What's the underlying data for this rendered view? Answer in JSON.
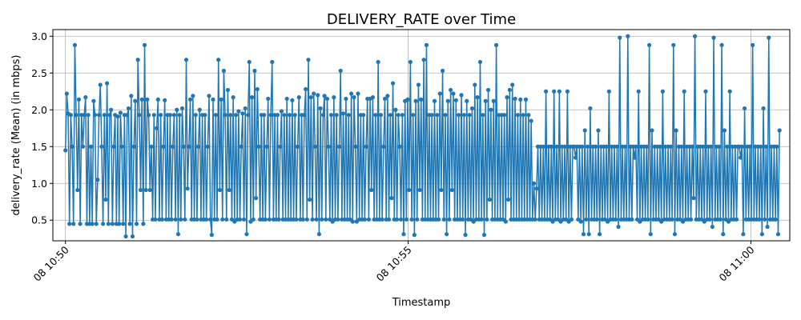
{
  "chart_data": {
    "type": "line",
    "title": "DELIVERY_RATE over Time",
    "xlabel": "Timestamp",
    "ylabel": "delivery_rate (Mean) (in mbps)",
    "x_range": [
      "08 10:49:49",
      "08 11:00:34"
    ],
    "ylim": [
      0.22,
      3.09
    ],
    "y_ticks": [
      0.5,
      1.0,
      1.5,
      2.0,
      2.5,
      3.0
    ],
    "y_tick_labels": [
      "0.5",
      "1.0",
      "1.5",
      "2.0",
      "2.5",
      "3.0"
    ],
    "x_ticks": [
      {
        "value": "08 10:50:00",
        "label": "08 10:50"
      },
      {
        "value": "08 10:55:00",
        "label": "08 10:55"
      },
      {
        "value": "08 11:00:00",
        "label": "08 11:00"
      }
    ],
    "grid": true,
    "color": "#1f77b4",
    "series": [
      {
        "x_start": "08 10:50:00",
        "x_end": "08 11:00:25",
        "values": [
          1.45,
          2.22,
          1.95,
          0.45,
          1.93,
          1.5,
          0.45,
          2.88,
          1.93,
          0.91,
          2.14,
          0.45,
          1.93,
          1.5,
          1.93,
          2.17,
          0.45,
          1.93,
          0.45,
          1.5,
          0.45,
          2.12,
          1.93,
          0.45,
          1.05,
          1.93,
          2.34,
          1.5,
          0.45,
          1.93,
          0.78,
          2.36,
          0.45,
          1.93,
          2.0,
          0.45,
          1.5,
          1.93,
          0.45,
          1.91,
          0.45,
          1.96,
          1.5,
          0.45,
          1.93,
          0.28,
          1.93,
          2.02,
          0.45,
          2.19,
          0.28,
          1.5,
          2.12,
          0.45,
          2.68,
          1.93,
          0.91,
          2.14,
          0.45,
          2.88,
          0.91,
          2.14,
          1.93,
          0.91,
          1.5,
          0.51,
          1.93,
          0.51,
          1.75,
          2.14,
          0.51,
          1.93,
          0.51,
          1.5,
          2.13,
          0.51,
          1.93,
          0.51,
          1.93,
          0.51,
          1.5,
          1.93,
          0.51,
          2.0,
          0.31,
          1.93,
          0.51,
          2.02,
          1.5,
          0.51,
          2.68,
          0.93,
          1.5,
          2.14,
          0.51,
          2.19,
          0.51,
          1.93,
          0.51,
          1.5,
          2.0,
          0.51,
          1.93,
          0.51,
          1.93,
          0.51,
          1.5,
          2.19,
          0.51,
          0.3,
          2.14,
          0.51,
          1.93,
          0.51,
          2.68,
          0.91,
          2.14,
          0.51,
          2.53,
          1.93,
          0.51,
          2.27,
          0.91,
          1.93,
          0.51,
          2.17,
          0.48,
          1.93,
          0.51,
          1.98,
          0.51,
          1.5,
          1.95,
          0.51,
          2.02,
          0.31,
          1.93,
          2.65,
          0.48,
          2.17,
          0.51,
          2.53,
          0.8,
          2.28,
          1.5,
          0.51,
          1.93,
          0.51,
          1.93,
          0.51,
          1.5,
          2.15,
          0.51,
          1.93,
          2.65,
          0.51,
          1.93,
          0.51,
          1.93,
          0.51,
          1.5,
          1.98,
          0.51,
          1.93,
          0.51,
          2.15,
          0.51,
          1.93,
          0.51,
          2.13,
          0.51,
          1.93,
          0.51,
          1.5,
          2.17,
          0.51,
          1.93,
          0.51,
          1.93,
          2.28,
          0.51,
          2.68,
          0.78,
          2.17,
          0.51,
          2.22,
          1.5,
          0.51,
          2.2,
          0.31,
          2.02,
          0.51,
          1.93,
          2.19,
          0.51,
          2.15,
          1.5,
          0.51,
          1.93,
          0.48,
          2.17,
          0.51,
          1.93,
          0.51,
          1.5,
          2.53,
          0.51,
          1.95,
          0.51,
          2.15,
          0.51,
          1.93,
          0.51,
          2.22,
          0.48,
          2.17,
          1.5,
          0.48,
          2.22,
          0.51,
          1.93,
          0.51,
          1.93,
          0.51,
          1.5,
          2.15,
          0.51,
          2.15,
          0.91,
          2.17,
          0.51,
          1.93,
          0.51,
          2.65,
          0.51,
          1.93,
          0.51,
          1.5,
          2.15,
          0.51,
          2.19,
          0.51,
          1.93,
          0.8,
          2.36,
          0.51,
          2.0,
          0.51,
          1.93,
          1.5,
          0.51,
          1.93,
          0.31,
          2.12,
          0.51,
          2.14,
          0.91,
          2.65,
          0.51,
          1.93,
          0.3,
          2.12,
          0.51,
          2.34,
          0.91,
          2.14,
          0.51,
          2.68,
          0.51,
          2.88,
          0.51,
          1.93,
          0.51,
          1.93,
          0.51,
          2.12,
          0.51,
          1.93,
          0.51,
          2.22,
          0.91,
          2.53,
          0.51,
          1.93,
          0.31,
          2.12,
          0.51,
          2.27,
          0.91,
          2.22,
          0.51,
          2.13,
          0.51,
          1.93,
          0.51,
          2.2,
          0.51,
          1.93,
          0.3,
          2.12,
          0.51,
          1.93,
          0.51,
          2.02,
          0.48,
          2.34,
          0.51,
          2.17,
          0.51,
          2.65,
          0.51,
          1.93,
          0.3,
          2.12,
          0.51,
          2.27,
          0.78,
          2.0,
          0.51,
          2.12,
          0.51,
          2.88,
          0.51,
          1.93,
          0.51,
          1.93,
          0.51,
          1.93,
          0.48,
          2.17,
          0.78,
          2.27,
          0.51,
          2.34,
          0.51,
          2.15,
          0.51,
          1.93,
          0.51,
          2.14,
          0.51,
          1.93,
          0.51,
          2.14,
          0.51,
          1.93,
          0.51,
          1.85,
          0.51,
          1.0,
          0.51,
          0.93,
          1.5,
          0.51,
          1.5,
          0.51,
          1.5,
          0.51,
          2.25,
          0.51,
          1.5,
          0.51,
          1.5,
          0.48,
          2.25,
          0.51,
          1.5,
          0.51,
          2.25,
          0.48,
          1.5,
          0.51,
          1.5,
          0.51,
          2.25,
          0.48,
          1.5,
          0.51,
          1.5,
          1.5,
          1.35,
          1.5,
          0.51,
          1.5,
          0.48,
          1.5,
          0.31,
          1.72,
          0.51,
          1.5,
          0.31,
          2.02,
          0.51,
          1.5,
          0.51,
          1.5,
          0.51,
          1.72,
          0.31,
          1.5,
          0.51,
          1.5,
          0.51,
          1.5,
          0.48,
          2.25,
          0.51,
          1.5,
          0.51,
          1.5,
          0.51,
          1.5,
          0.41,
          2.98,
          0.51,
          1.5,
          0.51,
          1.5,
          0.51,
          3.0,
          0.51,
          1.5,
          0.51,
          1.5,
          1.35,
          1.5,
          0.51,
          2.25,
          0.48,
          1.5,
          0.51,
          1.5,
          0.51,
          1.5,
          0.51,
          2.88,
          0.31,
          1.72,
          0.51,
          1.5,
          0.51,
          1.5,
          0.51,
          1.5,
          0.48,
          2.25,
          0.51,
          1.5,
          0.51,
          1.5,
          0.51,
          1.5,
          0.51,
          2.88,
          0.31,
          1.72,
          0.51,
          1.5,
          0.51,
          1.5,
          0.48,
          2.25,
          0.51,
          1.5,
          0.51,
          1.5,
          0.51,
          1.5,
          0.8,
          3.0,
          0.51,
          1.5,
          0.51,
          1.5,
          0.51,
          1.5,
          0.48,
          2.25,
          0.51,
          1.5,
          0.51,
          1.5,
          0.41,
          2.98,
          0.51,
          1.5,
          0.51,
          1.5,
          0.51,
          2.88,
          0.31,
          1.72,
          0.51,
          1.5,
          0.48,
          2.25,
          0.51,
          1.5,
          0.51,
          1.5,
          0.51,
          1.5,
          1.5,
          1.35,
          1.5,
          0.31,
          2.02,
          0.51,
          1.5,
          0.51,
          1.5,
          0.51,
          2.88,
          0.51,
          1.5,
          0.51,
          1.5,
          0.51,
          1.5,
          0.31,
          2.02,
          0.51,
          1.5,
          0.41,
          2.98,
          0.51,
          1.5,
          0.51,
          1.5,
          0.51,
          1.5,
          0.31,
          1.72
        ]
      }
    ]
  }
}
